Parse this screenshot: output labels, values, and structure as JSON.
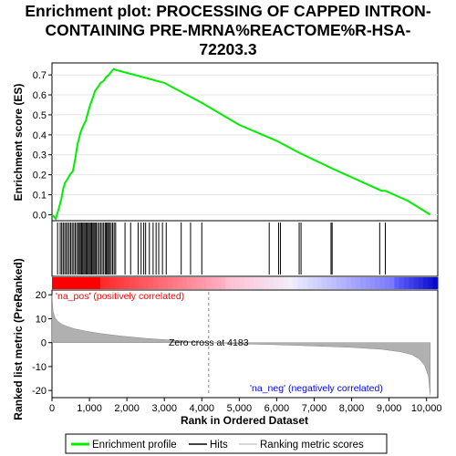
{
  "title_lines": [
    "Enrichment plot: PROCESSING OF CAPPED INTRON-",
    "CONTAINING PRE-MRNA%REACTOME%R-HSA-",
    "72203.3"
  ],
  "legend": {
    "profile": "Enrichment profile",
    "hits": "Hits",
    "ranking": "Ranking metric scores"
  },
  "annotations": {
    "pos": "'na_pos' (positively correlated)",
    "neg": "'na_neg' (negatively correlated)",
    "zero_cross": "Zero cross at 4183"
  },
  "colors": {
    "profile": "#00ee00",
    "pos": "#ff0000",
    "neg": "#0000ff",
    "ranking_fill": "#b0b0b0"
  },
  "chart_data": [
    {
      "type": "line",
      "name": "enrichment-score",
      "ylabel": "Enrichment score (ES)",
      "ylim": [
        -0.03,
        0.76
      ],
      "xlim": [
        0,
        10300
      ],
      "yticks": [
        0.0,
        0.1,
        0.2,
        0.3,
        0.4,
        0.5,
        0.6,
        0.7
      ],
      "ytick_labels": [
        "0.0",
        "0.1",
        "0.2",
        "0.3",
        "0.4",
        "0.5",
        "0.6",
        "0.7"
      ],
      "grid": true,
      "x": [
        0,
        100,
        180,
        250,
        300,
        350,
        420,
        480,
        560,
        620,
        680,
        720,
        760,
        820,
        900,
        960,
        1020,
        1080,
        1150,
        1230,
        1300,
        1380,
        1450,
        1520,
        1600,
        1650,
        1700,
        2000,
        2500,
        2900,
        3000,
        4000,
        5000,
        6000,
        6600,
        7500,
        8800,
        8900,
        9500,
        10100
      ],
      "y": [
        0.0,
        -0.02,
        0.03,
        0.08,
        0.13,
        0.16,
        0.18,
        0.2,
        0.22,
        0.28,
        0.35,
        0.38,
        0.41,
        0.44,
        0.47,
        0.51,
        0.55,
        0.58,
        0.62,
        0.64,
        0.66,
        0.67,
        0.69,
        0.7,
        0.72,
        0.73,
        0.725,
        0.71,
        0.685,
        0.665,
        0.66,
        0.56,
        0.45,
        0.37,
        0.31,
        0.23,
        0.12,
        0.12,
        0.07,
        0.0
      ]
    },
    {
      "type": "hits",
      "name": "hits",
      "positions": [
        150,
        220,
        260,
        300,
        340,
        380,
        420,
        460,
        500,
        540,
        580,
        620,
        660,
        700,
        730,
        760,
        790,
        820,
        850,
        880,
        910,
        940,
        970,
        1000,
        1030,
        1060,
        1090,
        1120,
        1150,
        1180,
        1220,
        1260,
        1300,
        1340,
        1380,
        1420,
        1450,
        1480,
        1510,
        1540,
        1580,
        1620,
        1660,
        1700,
        1950,
        2100,
        2300,
        2380,
        2450,
        2500,
        2600,
        2700,
        2780,
        2850,
        2950,
        3050,
        3450,
        3700,
        4000,
        5800,
        6050,
        6100,
        6600,
        6650,
        7450,
        7480,
        8750,
        8900
      ]
    },
    {
      "type": "area",
      "name": "ranking-metric",
      "xlabel": "Rank in Ordered Dataset",
      "ylabel": "Ranked list metric (PreRanked)",
      "ylim": [
        -23,
        22
      ],
      "xlim": [
        0,
        10300
      ],
      "yticks": [
        -20,
        -10,
        0,
        10,
        20
      ],
      "ytick_labels": [
        "-20",
        "-10",
        "0",
        "10",
        "20"
      ],
      "xticks": [
        0,
        1000,
        2000,
        3000,
        4000,
        5000,
        6000,
        7000,
        8000,
        9000,
        10000
      ],
      "xtick_labels": [
        "0",
        "1,000",
        "2,000",
        "3,000",
        "4,000",
        "5,000",
        "6,000",
        "7,000",
        "8,000",
        "9,000",
        "10,000"
      ],
      "zero_cross": 4183,
      "x": [
        0,
        30,
        80,
        150,
        250,
        400,
        600,
        900,
        1300,
        1800,
        2500,
        3300,
        4183,
        5000,
        6000,
        7000,
        8000,
        8800,
        9300,
        9600,
        9800,
        9950,
        10050,
        10100
      ],
      "y": [
        20,
        13,
        10.5,
        9,
        7.8,
        6.8,
        5.8,
        4.8,
        3.8,
        2.8,
        1.8,
        0.9,
        0,
        -0.5,
        -0.9,
        -1.4,
        -2.0,
        -2.8,
        -3.8,
        -5.0,
        -6.8,
        -9.5,
        -14,
        -22
      ]
    }
  ]
}
